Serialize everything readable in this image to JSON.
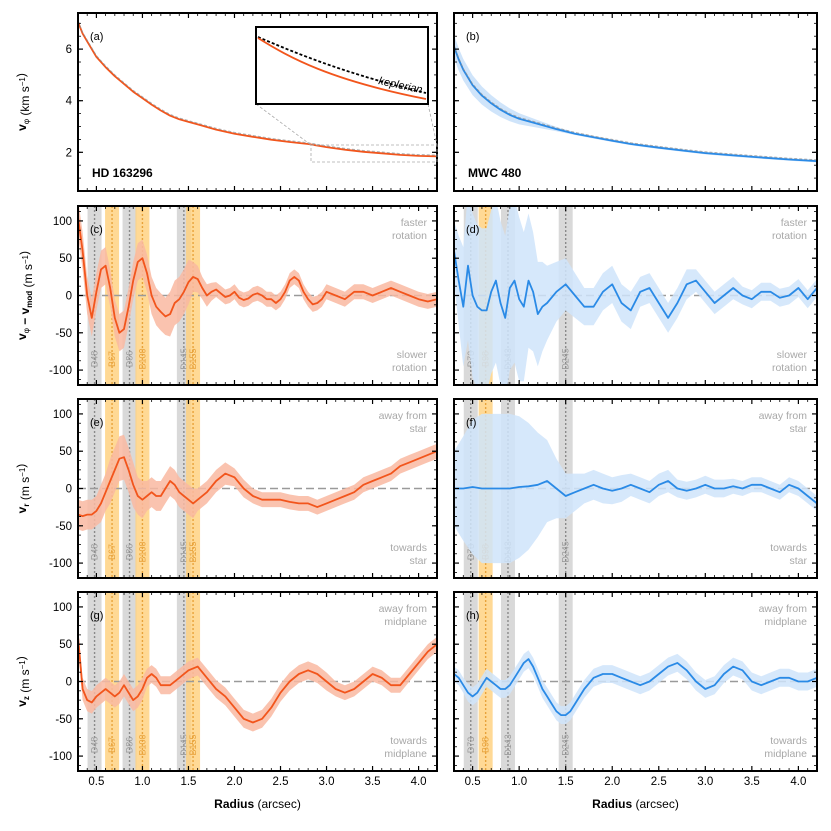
{
  "chart_data": [
    {
      "panel": "a",
      "source": "HD 163296",
      "type": "line",
      "ylabel": "v_φ  (km s⁻¹)",
      "xlim": [
        0.3,
        4.2
      ],
      "ylim": [
        0.5,
        7.4
      ],
      "yticks": [
        2,
        4,
        6
      ],
      "color": "#f2551c",
      "x": [
        0.3,
        0.35,
        0.4,
        0.5,
        0.6,
        0.7,
        0.8,
        0.9,
        1.0,
        1.1,
        1.2,
        1.3,
        1.4,
        1.5,
        1.6,
        1.8,
        2.0,
        2.2,
        2.4,
        2.6,
        2.8,
        3.0,
        3.2,
        3.4,
        3.6,
        3.8,
        4.0,
        4.2
      ],
      "y": [
        7.05,
        6.6,
        6.3,
        5.7,
        5.3,
        4.95,
        4.65,
        4.35,
        4.1,
        3.85,
        3.62,
        3.42,
        3.28,
        3.18,
        3.08,
        2.88,
        2.72,
        2.6,
        2.49,
        2.4,
        2.32,
        2.2,
        2.1,
        2.02,
        1.96,
        1.9,
        1.86,
        1.84
      ],
      "inset_label": "keplerian"
    },
    {
      "panel": "b",
      "source": "MWC 480",
      "type": "line",
      "xlim": [
        0.3,
        4.2
      ],
      "ylim": [
        0.5,
        7.4
      ],
      "yticks": [
        2,
        4,
        6
      ],
      "color": "#2a8ae6",
      "x": [
        0.3,
        0.35,
        0.4,
        0.5,
        0.6,
        0.7,
        0.8,
        0.9,
        1.0,
        1.2,
        1.4,
        1.6,
        1.8,
        2.0,
        2.2,
        2.5,
        2.8,
        3.0,
        3.3,
        3.6,
        3.9,
        4.2
      ],
      "y": [
        6.1,
        5.6,
        5.2,
        4.6,
        4.2,
        3.9,
        3.65,
        3.45,
        3.3,
        3.1,
        2.9,
        2.72,
        2.58,
        2.45,
        2.32,
        2.18,
        2.05,
        1.97,
        1.88,
        1.8,
        1.72,
        1.66
      ]
    },
    {
      "panel": "c",
      "source": "HD 163296",
      "type": "line",
      "ylabel": "v_φ − v_mod  (m s⁻¹)",
      "xlim": [
        0.3,
        4.2
      ],
      "ylim": [
        -120,
        120
      ],
      "yticks": [
        -100,
        -50,
        0,
        50,
        100
      ],
      "note_top": [
        "faster",
        "rotation"
      ],
      "note_bottom": [
        "slower",
        "rotation"
      ],
      "x": [
        0.3,
        0.35,
        0.4,
        0.45,
        0.5,
        0.55,
        0.6,
        0.65,
        0.7,
        0.75,
        0.8,
        0.85,
        0.9,
        0.95,
        1.0,
        1.05,
        1.1,
        1.15,
        1.2,
        1.25,
        1.3,
        1.35,
        1.4,
        1.45,
        1.5,
        1.55,
        1.6,
        1.65,
        1.7,
        1.75,
        1.8,
        1.85,
        1.9,
        1.95,
        2.0,
        2.05,
        2.1,
        2.15,
        2.2,
        2.25,
        2.3,
        2.35,
        2.4,
        2.45,
        2.5,
        2.55,
        2.6,
        2.65,
        2.7,
        2.75,
        2.8,
        2.85,
        2.9,
        2.95,
        3.0,
        3.1,
        3.2,
        3.3,
        3.4,
        3.5,
        3.6,
        3.7,
        3.8,
        3.9,
        4.0,
        4.1,
        4.2
      ],
      "y": [
        105,
        60,
        0,
        -30,
        5,
        35,
        40,
        10,
        -30,
        -50,
        -45,
        -15,
        20,
        45,
        50,
        30,
        0,
        -15,
        -22,
        -28,
        -25,
        -10,
        -5,
        5,
        18,
        25,
        22,
        10,
        0,
        5,
        8,
        3,
        -2,
        0,
        5,
        -3,
        -6,
        -4,
        1,
        3,
        0,
        -5,
        -5,
        -10,
        -5,
        5,
        20,
        25,
        20,
        5,
        -5,
        -12,
        -10,
        -5,
        5,
        0,
        -5,
        5,
        5,
        0,
        5,
        10,
        5,
        0,
        -5,
        -8,
        -5
      ],
      "band": [
        25,
        25,
        25,
        25,
        25,
        25,
        25,
        25,
        25,
        25,
        25,
        25,
        25,
        25,
        25,
        25,
        25,
        25,
        25,
        25,
        30,
        30,
        30,
        30,
        30,
        20,
        18,
        15,
        15,
        12,
        10,
        10,
        10,
        10,
        10,
        10,
        10,
        10,
        10,
        10,
        10,
        10,
        10,
        10,
        10,
        10,
        10,
        10,
        10,
        10,
        10,
        10,
        10,
        10,
        10,
        10,
        10,
        10,
        10,
        10,
        10,
        10,
        10,
        10,
        10,
        10,
        10
      ],
      "gaps": [
        {
          "label": "D48",
          "x": 0.48,
          "type": "D"
        },
        {
          "label": "B67",
          "x": 0.67,
          "type": "B"
        },
        {
          "label": "D86",
          "x": 0.86,
          "type": "D"
        },
        {
          "label": "B100",
          "x": 1.0,
          "type": "B"
        },
        {
          "label": "D145",
          "x": 1.45,
          "type": "D"
        },
        {
          "label": "B155",
          "x": 1.55,
          "type": "B"
        }
      ]
    },
    {
      "panel": "d",
      "source": "MWC 480",
      "type": "line",
      "xlim": [
        0.3,
        4.2
      ],
      "ylim": [
        -120,
        120
      ],
      "yticks": [
        -100,
        -50,
        0,
        50,
        100
      ],
      "note_top": [
        "faster",
        "rotation"
      ],
      "note_bottom": [
        "slower",
        "rotation"
      ],
      "x": [
        0.3,
        0.35,
        0.4,
        0.45,
        0.5,
        0.55,
        0.6,
        0.65,
        0.7,
        0.75,
        0.8,
        0.85,
        0.9,
        0.95,
        1.0,
        1.05,
        1.1,
        1.15,
        1.2,
        1.25,
        1.3,
        1.4,
        1.5,
        1.6,
        1.7,
        1.8,
        1.9,
        2.0,
        2.1,
        2.2,
        2.3,
        2.4,
        2.5,
        2.6,
        2.7,
        2.8,
        2.9,
        3.0,
        3.1,
        3.2,
        3.3,
        3.4,
        3.5,
        3.6,
        3.7,
        3.8,
        3.9,
        4.0,
        4.1,
        4.2
      ],
      "y": [
        60,
        20,
        -15,
        40,
        0,
        -15,
        -20,
        -20,
        5,
        20,
        -10,
        -30,
        10,
        20,
        -5,
        -15,
        20,
        5,
        -25,
        -15,
        -10,
        5,
        15,
        0,
        -15,
        -15,
        5,
        15,
        -10,
        -20,
        5,
        10,
        -10,
        -30,
        -10,
        15,
        20,
        5,
        -10,
        0,
        10,
        0,
        -5,
        5,
        5,
        -3,
        0,
        10,
        -5,
        10
      ],
      "band": [
        40,
        60,
        80,
        100,
        110,
        110,
        110,
        110,
        110,
        110,
        110,
        110,
        110,
        110,
        110,
        100,
        90,
        80,
        70,
        60,
        50,
        40,
        35,
        30,
        25,
        25,
        25,
        25,
        25,
        25,
        20,
        20,
        20,
        20,
        20,
        20,
        15,
        15,
        15,
        15,
        15,
        12,
        12,
        12,
        12,
        12,
        12,
        12,
        12,
        12
      ],
      "gaps": [
        {
          "label": "D73",
          "x": 0.48,
          "type": "D"
        },
        {
          "label": "B98",
          "x": 0.64,
          "type": "B"
        },
        {
          "label": "D143",
          "x": 0.88,
          "type": "D"
        },
        {
          "label": "D245",
          "x": 1.5,
          "type": "D"
        }
      ]
    },
    {
      "panel": "e",
      "source": "HD 163296",
      "type": "line",
      "ylabel": "v_r  (m s⁻¹)",
      "xlim": [
        0.3,
        4.2
      ],
      "ylim": [
        -120,
        120
      ],
      "yticks": [
        -100,
        -50,
        0,
        50,
        100
      ],
      "note_top": [
        "away from",
        "star"
      ],
      "note_bottom": [
        "towards",
        "star"
      ],
      "x": [
        0.3,
        0.35,
        0.4,
        0.45,
        0.5,
        0.55,
        0.6,
        0.65,
        0.7,
        0.75,
        0.8,
        0.85,
        0.9,
        0.95,
        1.0,
        1.05,
        1.1,
        1.15,
        1.2,
        1.25,
        1.3,
        1.35,
        1.4,
        1.45,
        1.5,
        1.55,
        1.6,
        1.7,
        1.8,
        1.9,
        2.0,
        2.1,
        2.2,
        2.3,
        2.4,
        2.5,
        2.6,
        2.7,
        2.8,
        2.9,
        3.0,
        3.1,
        3.2,
        3.3,
        3.4,
        3.5,
        3.6,
        3.7,
        3.8,
        3.9,
        4.0,
        4.1,
        4.2
      ],
      "y": [
        -35,
        -37,
        -35,
        -35,
        -30,
        -20,
        -5,
        10,
        25,
        40,
        42,
        25,
        5,
        -10,
        -15,
        -10,
        -5,
        -10,
        -10,
        0,
        10,
        5,
        -5,
        -10,
        -15,
        -20,
        -15,
        -5,
        10,
        20,
        15,
        0,
        -10,
        -15,
        -15,
        -15,
        -18,
        -20,
        -20,
        -25,
        -20,
        -15,
        -10,
        -5,
        5,
        10,
        15,
        20,
        30,
        35,
        40,
        45,
        50
      ],
      "band": [
        20,
        20,
        20,
        20,
        20,
        25,
        25,
        30,
        30,
        30,
        30,
        30,
        30,
        25,
        25,
        20,
        20,
        20,
        20,
        20,
        20,
        20,
        20,
        20,
        20,
        20,
        15,
        15,
        15,
        15,
        12,
        12,
        10,
        10,
        10,
        10,
        10,
        10,
        10,
        10,
        10,
        10,
        10,
        10,
        10,
        10,
        10,
        10,
        10,
        10,
        10,
        10,
        10
      ],
      "gaps": [
        {
          "label": "D48",
          "x": 0.48,
          "type": "D"
        },
        {
          "label": "B67",
          "x": 0.67,
          "type": "B"
        },
        {
          "label": "D86",
          "x": 0.86,
          "type": "D"
        },
        {
          "label": "B100",
          "x": 1.0,
          "type": "B"
        },
        {
          "label": "D145",
          "x": 1.45,
          "type": "D"
        },
        {
          "label": "B155",
          "x": 1.55,
          "type": "B"
        }
      ]
    },
    {
      "panel": "f",
      "source": "MWC 480",
      "type": "line",
      "xlim": [
        0.3,
        4.2
      ],
      "ylim": [
        -120,
        120
      ],
      "yticks": [
        -100,
        -50,
        0,
        50,
        100
      ],
      "note_top": [
        "away from",
        "star"
      ],
      "note_bottom": [
        "towards",
        "star"
      ],
      "x": [
        0.3,
        0.4,
        0.5,
        0.6,
        0.7,
        0.8,
        0.9,
        1.0,
        1.1,
        1.2,
        1.3,
        1.4,
        1.5,
        1.6,
        1.7,
        1.8,
        1.9,
        2.0,
        2.1,
        2.2,
        2.3,
        2.4,
        2.5,
        2.6,
        2.7,
        2.8,
        2.9,
        3.0,
        3.1,
        3.2,
        3.3,
        3.4,
        3.5,
        3.6,
        3.7,
        3.8,
        3.9,
        4.0,
        4.1,
        4.2
      ],
      "y": [
        0,
        0,
        2,
        0,
        0,
        0,
        0,
        2,
        3,
        5,
        10,
        0,
        -10,
        -5,
        0,
        5,
        0,
        -3,
        0,
        5,
        0,
        -5,
        5,
        10,
        0,
        -3,
        0,
        5,
        0,
        0,
        3,
        0,
        5,
        5,
        0,
        -5,
        5,
        0,
        -10,
        -20
      ],
      "band": [
        50,
        70,
        90,
        100,
        100,
        100,
        100,
        95,
        85,
        70,
        55,
        40,
        30,
        25,
        20,
        20,
        20,
        18,
        18,
        15,
        15,
        15,
        15,
        15,
        12,
        12,
        12,
        12,
        12,
        12,
        10,
        10,
        10,
        10,
        10,
        10,
        10,
        10,
        10,
        10
      ],
      "gaps": [
        {
          "label": "D73",
          "x": 0.48,
          "type": "D"
        },
        {
          "label": "B98",
          "x": 0.64,
          "type": "B"
        },
        {
          "label": "D143",
          "x": 0.88,
          "type": "D"
        },
        {
          "label": "D245",
          "x": 1.5,
          "type": "D"
        }
      ]
    },
    {
      "panel": "g",
      "source": "HD 163296",
      "type": "line",
      "ylabel": "v_z  (m s⁻¹)",
      "xlabel": "Radius  (arcsec)",
      "xlim": [
        0.3,
        4.2
      ],
      "ylim": [
        -120,
        120
      ],
      "yticks": [
        -100,
        -50,
        0,
        50,
        100
      ],
      "xticks": [
        0.5,
        1.0,
        1.5,
        2.0,
        2.5,
        3.0,
        3.5,
        4.0
      ],
      "note_top": [
        "away from",
        "midplane"
      ],
      "note_bottom": [
        "towards",
        "midplane"
      ],
      "x": [
        0.3,
        0.35,
        0.4,
        0.45,
        0.5,
        0.55,
        0.6,
        0.65,
        0.7,
        0.75,
        0.8,
        0.85,
        0.9,
        0.95,
        1.0,
        1.05,
        1.1,
        1.15,
        1.2,
        1.3,
        1.4,
        1.5,
        1.6,
        1.7,
        1.8,
        1.9,
        2.0,
        2.1,
        2.2,
        2.3,
        2.4,
        2.5,
        2.6,
        2.7,
        2.8,
        2.9,
        3.0,
        3.1,
        3.2,
        3.3,
        3.4,
        3.5,
        3.6,
        3.7,
        3.8,
        3.9,
        4.0,
        4.1,
        4.2
      ],
      "y": [
        60,
        -10,
        -25,
        -28,
        -20,
        -15,
        -10,
        -15,
        -20,
        -15,
        -5,
        -15,
        -25,
        -20,
        -10,
        5,
        10,
        5,
        -5,
        -5,
        5,
        15,
        20,
        5,
        -10,
        -20,
        -35,
        -50,
        -55,
        -50,
        -35,
        -15,
        0,
        10,
        15,
        10,
        0,
        -10,
        -15,
        -10,
        0,
        10,
        5,
        -5,
        -5,
        10,
        25,
        40,
        50
      ],
      "band": [
        15,
        15,
        15,
        15,
        15,
        15,
        15,
        15,
        15,
        15,
        15,
        15,
        15,
        15,
        15,
        12,
        12,
        12,
        12,
        12,
        12,
        12,
        12,
        12,
        12,
        12,
        12,
        12,
        12,
        12,
        12,
        12,
        12,
        12,
        12,
        12,
        12,
        10,
        10,
        10,
        10,
        10,
        10,
        10,
        10,
        10,
        10,
        10,
        10
      ],
      "gaps": [
        {
          "label": "D48",
          "x": 0.48,
          "type": "D"
        },
        {
          "label": "B67",
          "x": 0.67,
          "type": "B"
        },
        {
          "label": "D86",
          "x": 0.86,
          "type": "D"
        },
        {
          "label": "B100",
          "x": 1.0,
          "type": "B"
        },
        {
          "label": "D145",
          "x": 1.45,
          "type": "D"
        },
        {
          "label": "B155",
          "x": 1.55,
          "type": "B"
        }
      ]
    },
    {
      "panel": "h",
      "source": "MWC 480",
      "type": "line",
      "xlabel": "Radius  (arcsec)",
      "xlim": [
        0.3,
        4.2
      ],
      "ylim": [
        -120,
        120
      ],
      "yticks": [
        -100,
        -50,
        0,
        50,
        100
      ],
      "xticks": [
        0.5,
        1.0,
        1.5,
        2.0,
        2.5,
        3.0,
        3.5,
        4.0
      ],
      "note_top": [
        "away from",
        "midplane"
      ],
      "note_bottom": [
        "towards",
        "midplane"
      ],
      "x": [
        0.3,
        0.35,
        0.4,
        0.45,
        0.5,
        0.55,
        0.6,
        0.65,
        0.7,
        0.75,
        0.8,
        0.85,
        0.9,
        0.95,
        1.0,
        1.05,
        1.1,
        1.15,
        1.2,
        1.25,
        1.3,
        1.35,
        1.4,
        1.45,
        1.5,
        1.55,
        1.6,
        1.7,
        1.8,
        1.9,
        2.0,
        2.1,
        2.2,
        2.3,
        2.4,
        2.5,
        2.6,
        2.7,
        2.8,
        2.9,
        3.0,
        3.1,
        3.2,
        3.3,
        3.4,
        3.5,
        3.6,
        3.7,
        3.8,
        3.9,
        4.0,
        4.1,
        4.2
      ],
      "y": [
        10,
        5,
        -5,
        -15,
        -20,
        -15,
        -5,
        5,
        0,
        -5,
        -10,
        -10,
        -5,
        5,
        15,
        25,
        30,
        20,
        5,
        -10,
        -20,
        -30,
        -40,
        -45,
        -45,
        -40,
        -30,
        -10,
        5,
        10,
        10,
        5,
        0,
        -5,
        0,
        10,
        20,
        25,
        15,
        0,
        -10,
        -5,
        10,
        20,
        15,
        0,
        -5,
        0,
        5,
        5,
        0,
        0,
        5
      ],
      "band": [
        10,
        10,
        10,
        12,
        12,
        12,
        12,
        12,
        12,
        12,
        12,
        12,
        12,
        12,
        12,
        12,
        12,
        12,
        12,
        12,
        12,
        12,
        12,
        12,
        12,
        12,
        12,
        12,
        12,
        12,
        12,
        12,
        12,
        12,
        12,
        12,
        12,
        12,
        12,
        12,
        12,
        12,
        12,
        12,
        12,
        12,
        12,
        12,
        12,
        12,
        12,
        12,
        12
      ],
      "gaps": [
        {
          "label": "D73",
          "x": 0.48,
          "type": "D"
        },
        {
          "label": "B98",
          "x": 0.64,
          "type": "B"
        },
        {
          "label": "D143",
          "x": 0.88,
          "type": "D"
        },
        {
          "label": "D245",
          "x": 1.5,
          "type": "D"
        }
      ]
    }
  ],
  "colors": {
    "hd": "#f2551c",
    "hd_band": "#f9b9a1",
    "mwc": "#2a8ae6",
    "mwc_band": "#cfe4fa",
    "gap_d": "#cfcfcf",
    "gap_b": "#ffcf7a"
  }
}
